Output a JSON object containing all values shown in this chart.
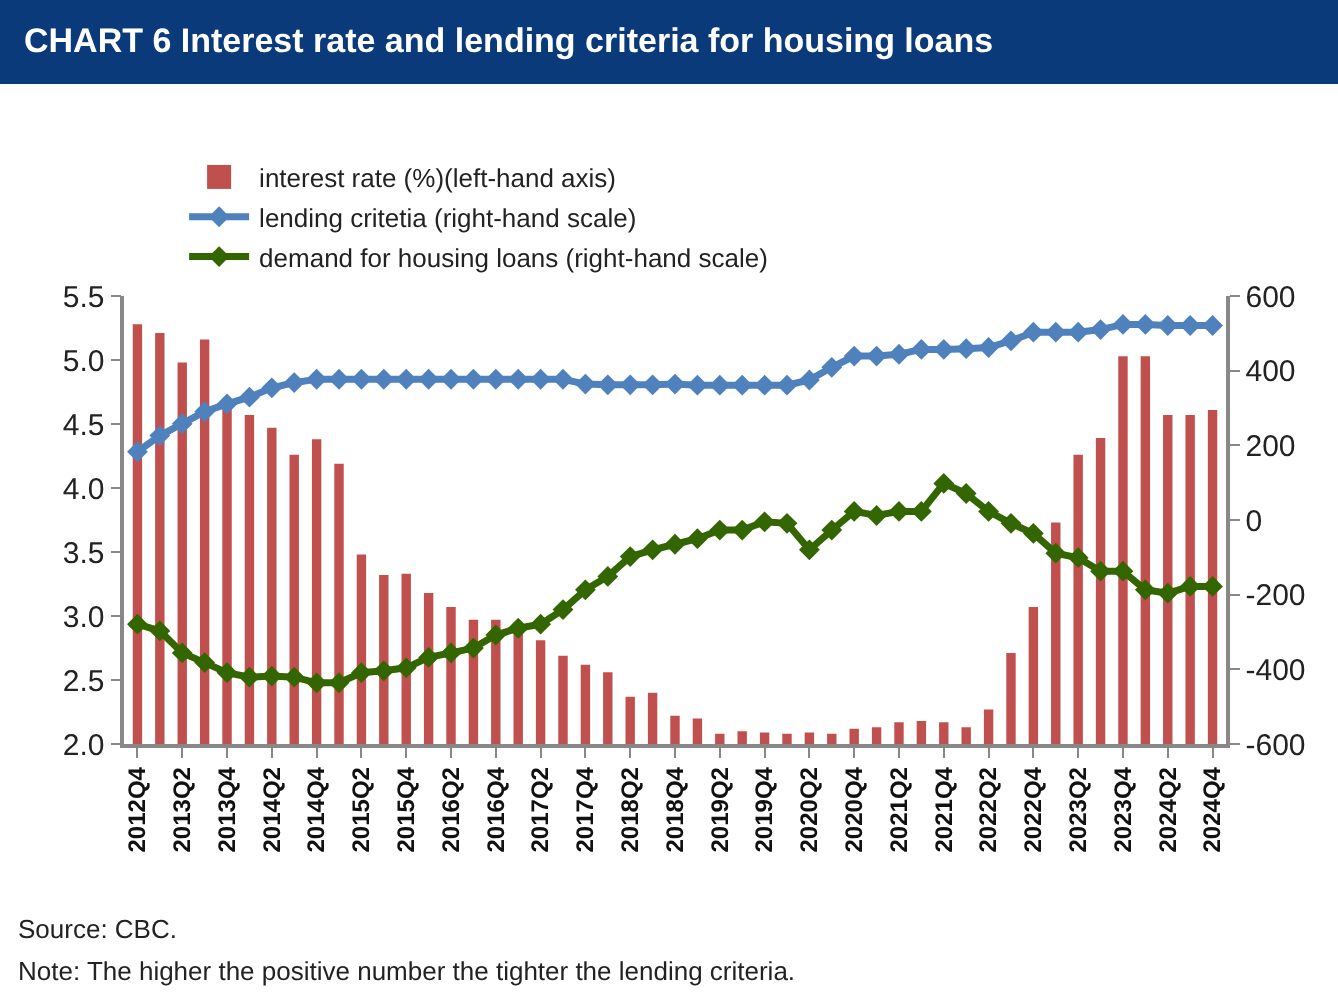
{
  "chart_data": {
    "type": "bar",
    "title": "CHART 6  Interest rate and lending criteria for housing loans",
    "categories": [
      "2012Q4",
      null,
      "2013Q2",
      null,
      "2013Q4",
      null,
      "2014Q2",
      null,
      "2014Q4",
      null,
      "2015Q2",
      null,
      "2015Q4",
      null,
      "2016Q2",
      null,
      "2016Q4",
      null,
      "2017Q2",
      null,
      "2017Q4",
      null,
      "2018Q2",
      null,
      "2018Q4",
      null,
      "2019Q2",
      null,
      "2019Q4",
      null,
      "2020Q2",
      null,
      "2020Q4",
      null,
      "2021Q2",
      null,
      "2021Q4",
      null,
      "2022Q2",
      null,
      "2022Q4",
      null,
      "2023Q2",
      null,
      "2023Q4",
      null,
      "2024Q2",
      null,
      "2024Q4"
    ],
    "series": [
      {
        "name": "interest rate (%)(left-hand axis)",
        "color": "#c0504d",
        "values": [
          5.28,
          5.21,
          4.98,
          5.16,
          4.62,
          4.57,
          4.47,
          4.26,
          4.38,
          4.19,
          3.48,
          3.32,
          3.33,
          3.18,
          3.07,
          2.97,
          2.97,
          2.88,
          2.81,
          2.69,
          2.62,
          2.56,
          2.37,
          2.4,
          2.22,
          2.2,
          2.08,
          2.1,
          2.09,
          2.08,
          2.09,
          2.08,
          2.12,
          2.13,
          2.17,
          2.18,
          2.17,
          2.13,
          2.27,
          2.71,
          3.07,
          3.73,
          4.26,
          4.39,
          5.03,
          5.03,
          4.57,
          4.57,
          4.61
        ]
      },
      {
        "name": "lending critetia (right-hand scale)",
        "type": "line",
        "axis": "y2",
        "color": "#4f81bd",
        "values": [
          183,
          226,
          258,
          290,
          311,
          329,
          354,
          368,
          377,
          377,
          377,
          377,
          377,
          377,
          377,
          377,
          377,
          377,
          377,
          377,
          364,
          362,
          362,
          362,
          364,
          361,
          361,
          361,
          361,
          361,
          375,
          409,
          439,
          439,
          444,
          457,
          457,
          459,
          462,
          480,
          503,
          503,
          503,
          510,
          524,
          524,
          521,
          521,
          521
        ]
      },
      {
        "name": "demand for housing loans (right-hand scale)",
        "type": "line",
        "axis": "y2",
        "color": "#336600",
        "values": [
          -279,
          -297,
          -356,
          -382,
          -409,
          -421,
          -418,
          -421,
          -436,
          -436,
          -409,
          -404,
          -396,
          -368,
          -356,
          -343,
          -308,
          -290,
          -279,
          -240,
          -187,
          -151,
          -98,
          -80,
          -65,
          -50,
          -27,
          -27,
          -5,
          -9,
          -80,
          -27,
          23,
          12,
          23,
          23,
          98,
          71,
          23,
          -9,
          -36,
          -89,
          -101,
          -137,
          -137,
          -187,
          -196,
          -178,
          -178
        ]
      }
    ],
    "ylim": [
      2,
      5.5
    ],
    "yticks": [
      {
        "value": 2,
        "label": "2.0"
      },
      {
        "value": 2.5,
        "label": "2.5"
      },
      {
        "value": 3,
        "label": "3.0"
      },
      {
        "value": 3.5,
        "label": "3.5"
      },
      {
        "value": 4,
        "label": "4.0"
      },
      {
        "value": 4.5,
        "label": "4.5"
      },
      {
        "value": 5,
        "label": "5.0"
      },
      {
        "value": 5.5,
        "label": "5.5"
      }
    ],
    "y2lim": [
      -600,
      600
    ],
    "y2ticks": [
      -600,
      -400,
      -200,
      0,
      200,
      400,
      600
    ],
    "marker": "diamond",
    "legend": "top",
    "annotations": [
      "Source: CBC.",
      "Note: The higher the positive number the tighter the lending criteria."
    ]
  }
}
